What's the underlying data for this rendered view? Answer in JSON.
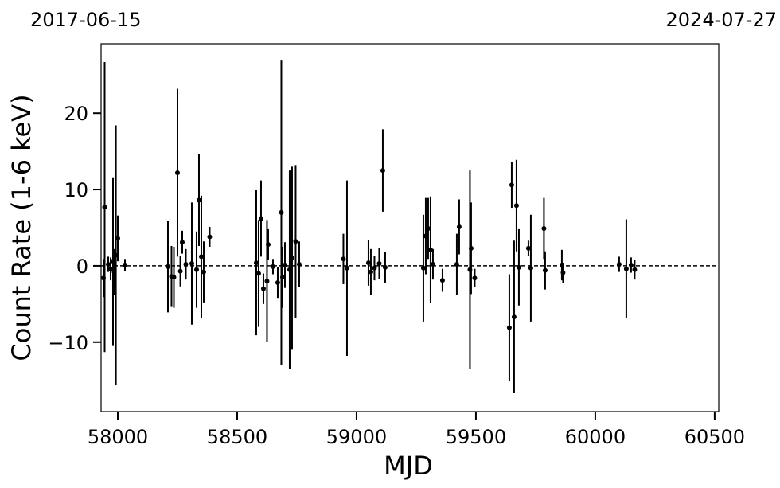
{
  "chart_data": {
    "type": "errorbar",
    "top_labels": [
      "2017-06-15",
      "2024-07-27"
    ],
    "xlabel": "MJD",
    "ylabel": "Count Rate (1-6 keV)",
    "color": "#000000",
    "hline": 0,
    "xlim": [
      57930,
      60517
    ],
    "ylim": [
      -19.1,
      29.1
    ],
    "xticks": [
      58000,
      58500,
      59000,
      59500,
      60000,
      60500
    ],
    "yticks": [
      {
        "value": -10,
        "label": "−10"
      },
      0,
      10,
      20
    ],
    "x": [
      57940,
      57945,
      57960,
      57970,
      57980,
      57985,
      57992,
      58000,
      58030,
      58210,
      58225,
      58235,
      58250,
      58262,
      58270,
      58285,
      58310,
      58330,
      58340,
      58350,
      58360,
      58385,
      58580,
      58590,
      58600,
      58610,
      58625,
      58630,
      58650,
      58670,
      58685,
      58690,
      58700,
      58720,
      58730,
      58745,
      58760,
      58945,
      58960,
      59050,
      59060,
      59075,
      59095,
      59110,
      59120,
      59280,
      59290,
      59300,
      59310,
      59320,
      59360,
      59420,
      59430,
      59475,
      59480,
      59495,
      59640,
      59650,
      59660,
      59670,
      59680,
      59720,
      59730,
      59785,
      59790,
      59860,
      59865,
      60100,
      60130,
      60150,
      60165
    ],
    "values": [
      -1.6,
      7.7,
      0.2,
      -0.4,
      0.6,
      -0.8,
      1.4,
      3.6,
      0.1,
      -0.1,
      -1.4,
      -1.5,
      12.2,
      -0.7,
      3.1,
      0.2,
      0.3,
      -0.5,
      8.6,
      1.2,
      -0.8,
      3.8,
      0.4,
      -1.0,
      6.2,
      -3,
      -2.0,
      2.8,
      -0.1,
      -2.2,
      7.0,
      -1.5,
      0.1,
      -0.5,
      1.0,
      3.2,
      0.2,
      0.9,
      -0.3,
      0.4,
      -0.8,
      -0.3,
      0.3,
      12.5,
      -0.2,
      -0.3,
      3.9,
      4.9,
      2.1,
      0.2,
      -1.9,
      0.2,
      5.1,
      -0.5,
      2.3,
      -1.6,
      -8.1,
      10.6,
      -6.7,
      7.9,
      -0.2,
      2.3,
      -0.3,
      4.9,
      -0.6,
      0.1,
      -0.9,
      0.2,
      -0.4,
      0.1,
      -0.5
    ],
    "errors": [
      2.5,
      19,
      1,
      1.5,
      11,
      3,
      17,
      3,
      0.8,
      6,
      4,
      4,
      11,
      2,
      1.5,
      2,
      8,
      5,
      6,
      8,
      4,
      1.3,
      9.5,
      7,
      5,
      2,
      8,
      2,
      1,
      2,
      20,
      4,
      3,
      13,
      12,
      10,
      3,
      3.3,
      11.5,
      3,
      3,
      1.6,
      2,
      5.4,
      2,
      7,
      5,
      4,
      7,
      2,
      1.5,
      4,
      3.6,
      13,
      6,
      1.2,
      7,
      3,
      10,
      6,
      5,
      1,
      7,
      4,
      2.5,
      2,
      1.3,
      1,
      6.5,
      1,
      1.3
    ]
  }
}
